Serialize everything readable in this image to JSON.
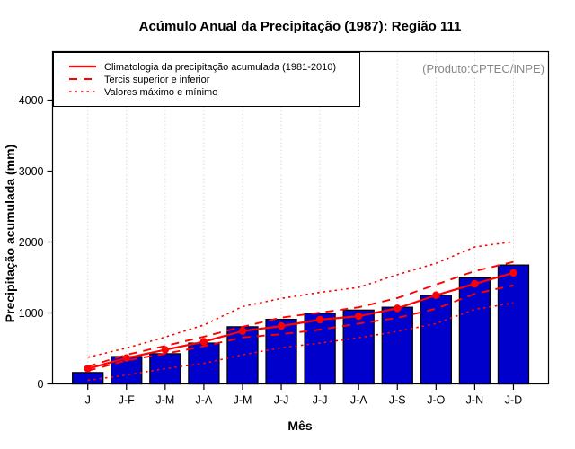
{
  "chart_data": {
    "type": "bar",
    "title": "Acúmulo Anual da Precipitação (1987): Região 111",
    "xlabel": "Mês",
    "ylabel": "Precipitação acumulada (mm)",
    "annotation": "(Produto:CPTEC/INPE)",
    "categories": [
      "J",
      "J-F",
      "J-M",
      "J-A",
      "J-M",
      "J-J",
      "J-J",
      "J-A",
      "J-S",
      "J-O",
      "J-N",
      "J-D"
    ],
    "yticks": [
      0,
      1000,
      2000,
      3000,
      4000
    ],
    "ylim": [
      0,
      4680
    ],
    "grid": "vertical-dotted-per-month",
    "legend_position": "top-left-inside",
    "legend": [
      {
        "label": "Climatologia da precipitação acumulada (1981-2010)",
        "style": "solid"
      },
      {
        "label": "Tercis superior e inferior",
        "style": "longdash"
      },
      {
        "label": "Valores máximo e mínimo",
        "style": "dotted"
      }
    ],
    "bars": {
      "values": [
        160,
        385,
        425,
        575,
        805,
        910,
        995,
        1040,
        1080,
        1250,
        1495,
        1675
      ],
      "color": "#0000CD"
    },
    "series": [
      {
        "name": "Climatologia da precipitação acumulada (1981-2010)",
        "style": "solid",
        "markers": true,
        "values": [
          215,
          365,
          480,
          595,
          745,
          815,
          905,
          955,
          1065,
          1250,
          1410,
          1565
        ]
      },
      {
        "name": "Tercil superior",
        "style": "longdash",
        "markers": false,
        "values": [
          245,
          410,
          535,
          665,
          805,
          935,
          1005,
          1080,
          1210,
          1400,
          1590,
          1720
        ]
      },
      {
        "name": "Tercil inferior",
        "style": "longdash",
        "markers": false,
        "values": [
          185,
          330,
          425,
          530,
          655,
          700,
          765,
          850,
          930,
          1060,
          1270,
          1390
        ]
      },
      {
        "name": "Valor máximo",
        "style": "dotted",
        "markers": false,
        "values": [
          375,
          505,
          660,
          830,
          1090,
          1205,
          1290,
          1360,
          1540,
          1700,
          1930,
          2005
        ]
      },
      {
        "name": "Valor mínimo",
        "style": "dotted",
        "markers": false,
        "values": [
          50,
          125,
          215,
          290,
          410,
          510,
          575,
          650,
          740,
          850,
          1050,
          1140
        ]
      }
    ],
    "colors": {
      "line": "#FF0000",
      "bar": "#0000CD",
      "gridline": "#DADADA",
      "annotation": "#878787"
    }
  }
}
